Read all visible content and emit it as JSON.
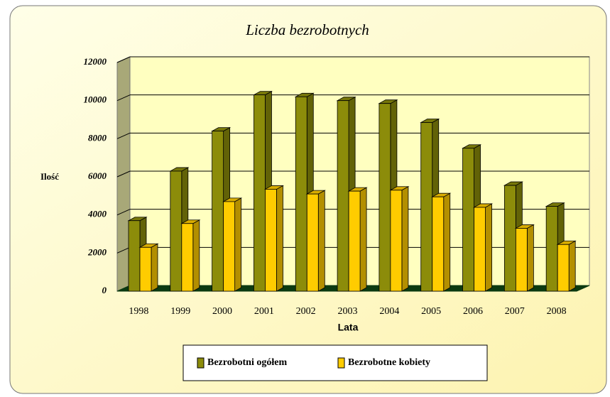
{
  "chart_data": {
    "type": "bar3d",
    "title": "Liczba bezrobotnych",
    "y_label": "Ilość",
    "x_label": "Lata",
    "categories": [
      "1998",
      "1999",
      "2000",
      "2001",
      "2002",
      "2003",
      "2004",
      "2005",
      "2006",
      "2007",
      "2008"
    ],
    "series": [
      {
        "name": "Bezrobotni ogółem",
        "color": "#8c8c0a",
        "values": [
          3700,
          6300,
          8400,
          10300,
          10200,
          10000,
          9850,
          8850,
          7500,
          5550,
          4450
        ]
      },
      {
        "name": "Bezrobotne kobiety",
        "color": "#ffcc00",
        "values": [
          2300,
          3550,
          4700,
          5350,
          5100,
          5250,
          5300,
          4950,
          4400,
          3300,
          2450
        ]
      }
    ],
    "ylim": [
      0,
      12000
    ],
    "yticks": [
      0,
      2000,
      4000,
      6000,
      8000,
      10000,
      12000
    ],
    "grid": true,
    "legend": "bottom"
  }
}
